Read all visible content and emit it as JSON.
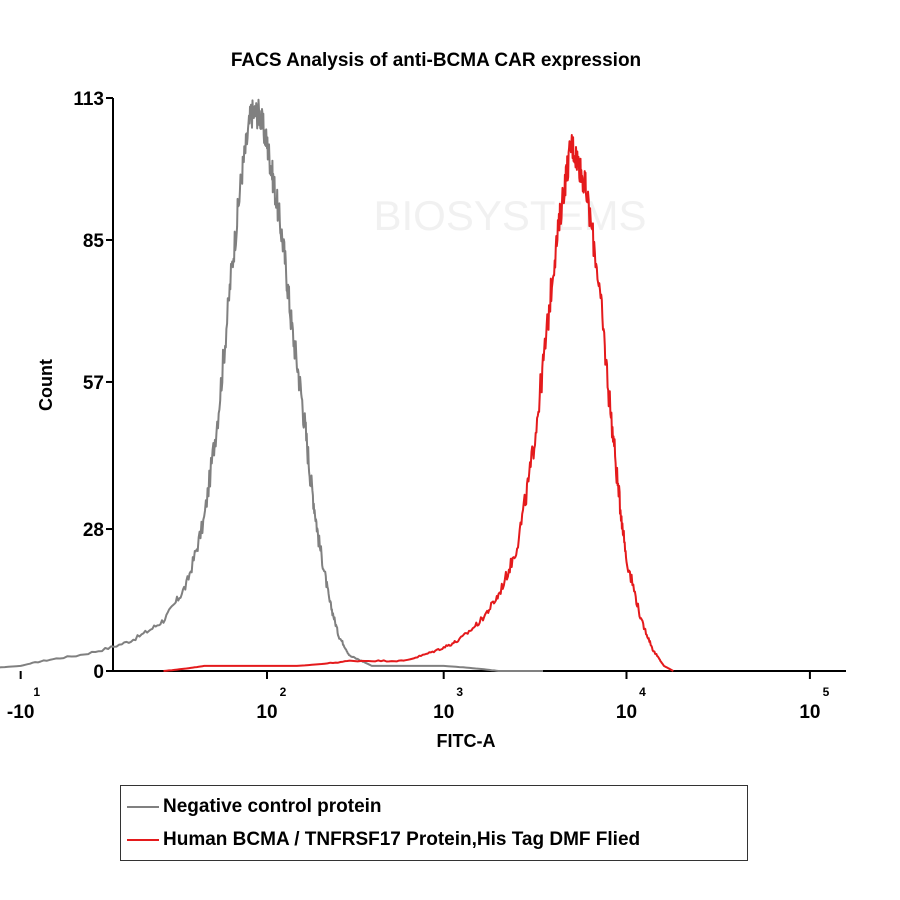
{
  "chart_data": {
    "type": "line",
    "title": "FACS Analysis of anti-BCMA CAR expression",
    "xlabel": "FITC-A",
    "ylabel": "Count",
    "x_scale": "biexponential",
    "ylim": [
      0,
      113
    ],
    "y_ticks": [
      0,
      28,
      57,
      85,
      113
    ],
    "x_ticks": [
      {
        "base": "-10",
        "exp": "1",
        "value": -10
      },
      {
        "base": "10",
        "exp": "2",
        "value": 100
      },
      {
        "base": "10",
        "exp": "3",
        "value": 1000
      },
      {
        "base": "10",
        "exp": "4",
        "value": 10000
      },
      {
        "base": "10",
        "exp": "5",
        "value": 100000
      }
    ],
    "grid": false,
    "legend_position": "bottom",
    "series": [
      {
        "name": "Negative control protein",
        "color": "#808080",
        "points": [
          [
            -30,
            0
          ],
          [
            -10,
            1
          ],
          [
            0,
            3
          ],
          [
            10,
            6
          ],
          [
            20,
            10
          ],
          [
            30,
            17
          ],
          [
            40,
            30
          ],
          [
            50,
            52
          ],
          [
            60,
            78
          ],
          [
            70,
            98
          ],
          [
            80,
            110
          ],
          [
            90,
            110
          ],
          [
            100,
            104
          ],
          [
            110,
            96
          ],
          [
            125,
            84
          ],
          [
            140,
            68
          ],
          [
            160,
            54
          ],
          [
            180,
            38
          ],
          [
            200,
            26
          ],
          [
            230,
            14
          ],
          [
            260,
            7
          ],
          [
            300,
            3
          ],
          [
            400,
            1
          ],
          [
            700,
            1
          ],
          [
            1000,
            1
          ],
          [
            2000,
            0
          ],
          [
            3500,
            0
          ]
        ]
      },
      {
        "name": "Human BCMA / TNFRSF17 Protein,His Tag DMF Flied",
        "color": "#e41a1c",
        "points": [
          [
            20,
            0
          ],
          [
            40,
            1
          ],
          [
            80,
            1
          ],
          [
            150,
            1
          ],
          [
            300,
            2
          ],
          [
            600,
            2
          ],
          [
            900,
            4
          ],
          [
            1200,
            6
          ],
          [
            1600,
            10
          ],
          [
            2000,
            15
          ],
          [
            2500,
            24
          ],
          [
            3000,
            40
          ],
          [
            3500,
            60
          ],
          [
            4000,
            80
          ],
          [
            4500,
            94
          ],
          [
            5000,
            104
          ],
          [
            5500,
            100
          ],
          [
            6000,
            95
          ],
          [
            7000,
            78
          ],
          [
            8000,
            55
          ],
          [
            9000,
            36
          ],
          [
            10000,
            22
          ],
          [
            12000,
            10
          ],
          [
            14000,
            4
          ],
          [
            16000,
            1
          ],
          [
            18000,
            0
          ]
        ]
      }
    ]
  },
  "watermark": "BIOSYSTEMS"
}
